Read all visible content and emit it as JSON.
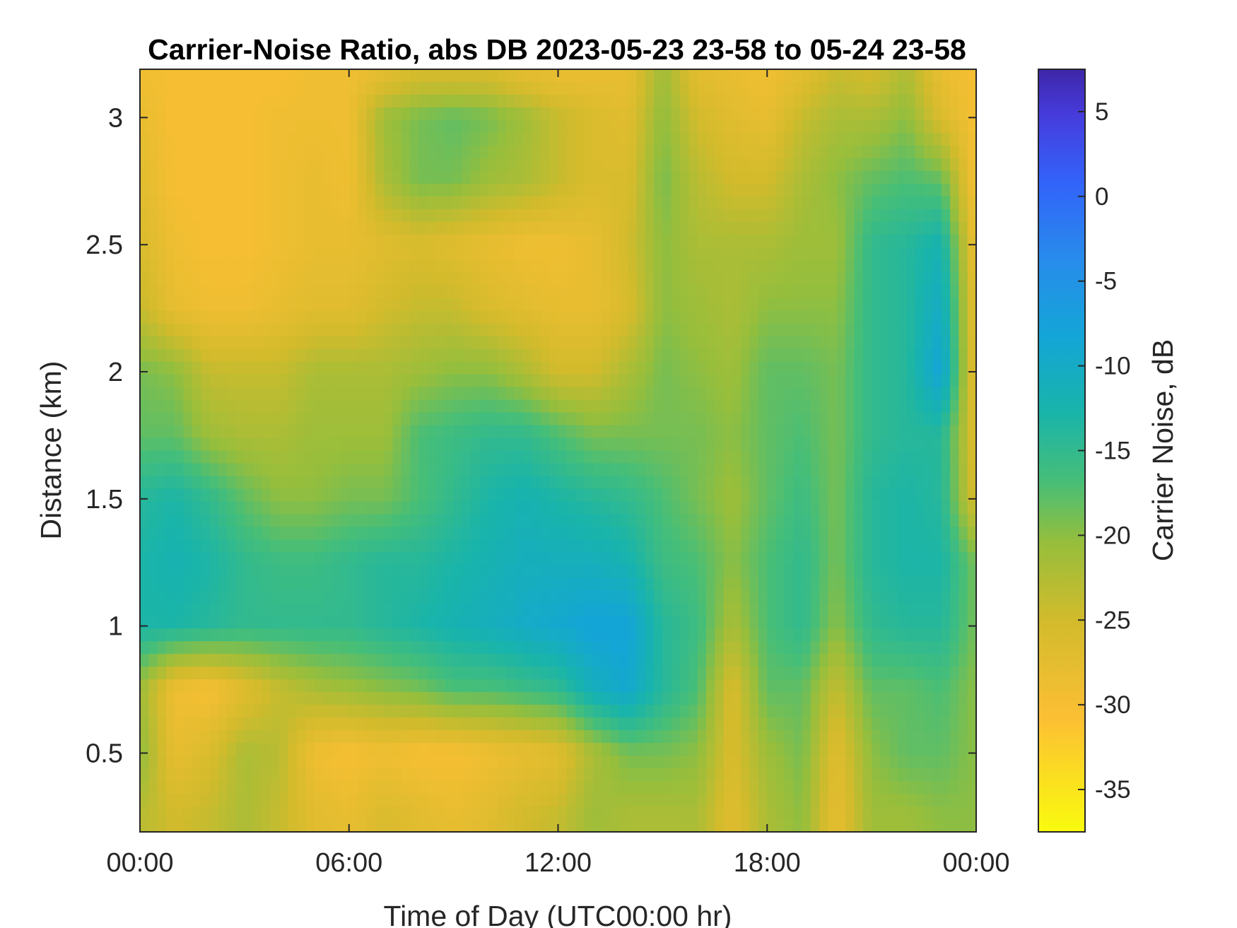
{
  "chart_data": {
    "type": "heatmap",
    "title": "Carrier-Noise Ratio, abs DB 2023-05-23 23-58 to 05-24 23-58",
    "xlabel": "Time of Day (UTC00:00 hr)",
    "ylabel": "Distance (km)",
    "colorbar_label": "Carrier Noise, dB",
    "xlim": [
      0,
      24
    ],
    "ylim": [
      0.19,
      3.19
    ],
    "clim": [
      -37.5,
      7.5
    ],
    "colormap": "parula",
    "x_ticks": [
      {
        "value": 0,
        "label": "00:00"
      },
      {
        "value": 6,
        "label": "06:00"
      },
      {
        "value": 12,
        "label": "12:00"
      },
      {
        "value": 18,
        "label": "18:00"
      },
      {
        "value": 24,
        "label": "00:00"
      }
    ],
    "y_ticks": [
      {
        "value": 0.5,
        "label": "0.5"
      },
      {
        "value": 1,
        "label": "1"
      },
      {
        "value": 1.5,
        "label": "1.5"
      },
      {
        "value": 2,
        "label": "2"
      },
      {
        "value": 2.5,
        "label": "2.5"
      },
      {
        "value": 3,
        "label": "3"
      }
    ],
    "colorbar_ticks": [
      {
        "value": 5,
        "label": "5"
      },
      {
        "value": 0,
        "label": "0"
      },
      {
        "value": -5,
        "label": "-5"
      },
      {
        "value": -10,
        "label": "-10"
      },
      {
        "value": -15,
        "label": "-15"
      },
      {
        "value": -20,
        "label": "-20"
      },
      {
        "value": -25,
        "label": "-25"
      },
      {
        "value": -30,
        "label": "-30"
      },
      {
        "value": -35,
        "label": "-35"
      }
    ],
    "x": [
      0,
      1,
      2,
      3,
      4,
      5,
      6,
      7,
      8,
      9,
      10,
      11,
      12,
      13,
      14,
      15,
      16,
      17,
      18,
      19,
      20,
      21,
      22,
      23,
      24
    ],
    "y": [
      0.25,
      0.5,
      0.75,
      1.0,
      1.25,
      1.5,
      1.75,
      2.0,
      2.25,
      2.5,
      2.75,
      3.0,
      3.15
    ],
    "z": [
      [
        -23,
        -25,
        -24,
        -22,
        -24,
        -27,
        -28,
        -26,
        -27,
        -28,
        -27,
        -25,
        -24,
        -21,
        -22,
        -22,
        -22,
        -27,
        -22,
        -20,
        -28,
        -21,
        -21,
        -20,
        -20
      ],
      [
        -20,
        -28,
        -26,
        -22,
        -23,
        -29,
        -30,
        -29,
        -30,
        -30,
        -29,
        -28,
        -27,
        -22,
        -19,
        -19,
        -20,
        -26,
        -21,
        -19,
        -27,
        -20,
        -18,
        -18,
        -20
      ],
      [
        -21,
        -29,
        -30,
        -27,
        -24,
        -22,
        -21,
        -20,
        -19,
        -17,
        -17,
        -16,
        -15,
        -11,
        -9,
        -14,
        -17,
        -26,
        -18,
        -18,
        -24,
        -18,
        -18,
        -17,
        -20
      ],
      [
        -13,
        -13,
        -14,
        -15,
        -15,
        -15,
        -15,
        -14,
        -13,
        -12,
        -11,
        -10,
        -9,
        -8,
        -8,
        -14,
        -16,
        -22,
        -17,
        -15,
        -20,
        -15,
        -14,
        -14,
        -19
      ],
      [
        -13,
        -12,
        -13,
        -15,
        -16,
        -16,
        -15,
        -14,
        -14,
        -13,
        -12,
        -11,
        -11,
        -11,
        -12,
        -16,
        -17,
        -20,
        -17,
        -15,
        -19,
        -14,
        -13,
        -13,
        -19
      ],
      [
        -14,
        -13,
        -15,
        -18,
        -20,
        -20,
        -19,
        -19,
        -17,
        -15,
        -13,
        -12,
        -13,
        -14,
        -15,
        -17,
        -19,
        -21,
        -18,
        -16,
        -19,
        -14,
        -13,
        -14,
        -26
      ],
      [
        -18,
        -18,
        -21,
        -22,
        -22,
        -21,
        -21,
        -21,
        -17,
        -16,
        -15,
        -15,
        -17,
        -19,
        -19,
        -19,
        -19,
        -20,
        -18,
        -17,
        -19,
        -15,
        -14,
        -14,
        -27
      ],
      [
        -19,
        -20,
        -24,
        -24,
        -24,
        -22,
        -22,
        -22,
        -21,
        -20,
        -20,
        -22,
        -25,
        -25,
        -22,
        -19,
        -20,
        -21,
        -18,
        -18,
        -19,
        -15,
        -14,
        -8,
        -28
      ],
      [
        -24,
        -28,
        -29,
        -29,
        -28,
        -27,
        -27,
        -25,
        -24,
        -24,
        -26,
        -27,
        -28,
        -28,
        -26,
        -20,
        -21,
        -22,
        -20,
        -20,
        -20,
        -15,
        -14,
        -10,
        -28
      ],
      [
        -26,
        -29,
        -30,
        -30,
        -29,
        -28,
        -28,
        -27,
        -26,
        -27,
        -28,
        -29,
        -29,
        -28,
        -25,
        -20,
        -22,
        -22,
        -22,
        -21,
        -21,
        -15,
        -14,
        -12,
        -29
      ],
      [
        -27,
        -30,
        -30,
        -30,
        -29,
        -28,
        -29,
        -22,
        -19,
        -19,
        -21,
        -22,
        -24,
        -26,
        -26,
        -19,
        -23,
        -25,
        -25,
        -22,
        -20,
        -18,
        -17,
        -18,
        -30
      ],
      [
        -28,
        -30,
        -30,
        -30,
        -29,
        -29,
        -29,
        -21,
        -19,
        -18,
        -19,
        -21,
        -24,
        -26,
        -27,
        -20,
        -25,
        -27,
        -28,
        -24,
        -22,
        -22,
        -20,
        -26,
        -30
      ],
      [
        -29,
        -30,
        -30,
        -30,
        -30,
        -29,
        -29,
        -27,
        -25,
        -25,
        -25,
        -27,
        -28,
        -28,
        -28,
        -21,
        -27,
        -28,
        -29,
        -27,
        -24,
        -25,
        -22,
        -28,
        -30
      ]
    ]
  }
}
